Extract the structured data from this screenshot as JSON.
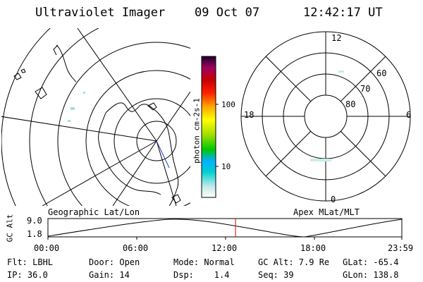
{
  "header": {
    "title": "Ultraviolet Imager",
    "date": "09 Oct 07",
    "time": "12:42:17 UT"
  },
  "colorbar": {
    "unit_label": "photon cm-2s-1",
    "ticks": [
      "100",
      "10"
    ]
  },
  "polar_plot": {
    "mlt_labels": {
      "top": "12",
      "left": "18",
      "right": "6",
      "bottom": "0"
    },
    "lat_labels": [
      "60",
      "70",
      "80"
    ]
  },
  "timeline": {
    "left_title": "Geographic Lat/Lon",
    "right_title": "Apex MLat/MLT",
    "axis_label": "GC Alt",
    "y_ticks": [
      "9.0",
      "1.8"
    ],
    "x_ticks": [
      "00:00",
      "06:00",
      "12:00",
      "18:00",
      "23:59"
    ],
    "current_time_fraction": 0.53
  },
  "status": {
    "filter": "Flt: LBHL",
    "ip": "IP: 36.0",
    "door": "Door: Open",
    "gain": "Gain: 14",
    "mode": "Mode: Normal",
    "dsp": "Dsp:    1.4",
    "gc_alt": "GC Alt: 7.9 Re",
    "seq": "Seq: 39",
    "glat": "GLat: -65.4",
    "glon": "GLon: 138.8"
  },
  "colors": {
    "colorbar_stops": [
      "#ffffff",
      "#b0e0e0",
      "#00c8c8",
      "#00b4ff",
      "#00c000",
      "#a0e000",
      "#ffff00",
      "#ffa000",
      "#ff3000",
      "#d00000",
      "#a00060",
      "#200040"
    ]
  }
}
